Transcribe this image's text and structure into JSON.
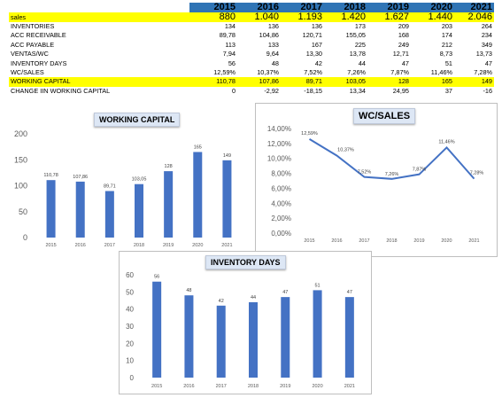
{
  "table": {
    "years": [
      "2015",
      "2016",
      "2017",
      "2018",
      "2019",
      "2020",
      "2021"
    ],
    "rows": [
      {
        "label": "sales",
        "values": [
          "880",
          "1.040",
          "1.193",
          "1.420",
          "1.627",
          "1.440",
          "2.046"
        ],
        "style": "sales"
      },
      {
        "label": "INVENTORIES",
        "values": [
          "134",
          "136",
          "136",
          "173",
          "209",
          "203",
          "264"
        ]
      },
      {
        "label": "ACC RECEIVABLE",
        "values": [
          "89,78",
          "104,86",
          "120,71",
          "155,05",
          "168",
          "174",
          "234"
        ]
      },
      {
        "label": "ACC PAYABLE",
        "values": [
          "113",
          "133",
          "167",
          "225",
          "249",
          "212",
          "349"
        ]
      },
      {
        "label": "VENTAS/WC",
        "values": [
          "7,94",
          "9,64",
          "13,30",
          "13,78",
          "12,71",
          "8,73",
          "13,73"
        ]
      },
      {
        "label": "INVENTORY DAYS",
        "values": [
          "56",
          "48",
          "42",
          "44",
          "47",
          "51",
          "47"
        ]
      },
      {
        "label": "WC/SALES",
        "values": [
          "12,59%",
          "10,37%",
          "7,52%",
          "7,26%",
          "7,87%",
          "11,46%",
          "7,28%"
        ]
      },
      {
        "label": "WORKING CAPITAL",
        "values": [
          "110,78",
          "107,86",
          "89,71",
          "103,05",
          "128",
          "165",
          "149"
        ],
        "style": "wc"
      },
      {
        "label": "CHANGE IIN WORKING CAPITAL",
        "values": [
          "0",
          "-2,92",
          "-18,15",
          "13,34",
          "24,95",
          "37",
          "-16"
        ]
      }
    ]
  },
  "chart_data": [
    {
      "type": "bar",
      "title": "WORKING CAPITAL",
      "categories": [
        "2015",
        "2016",
        "2017",
        "2018",
        "2019",
        "2020",
        "2021"
      ],
      "values": [
        110.78,
        107.86,
        89.71,
        103.05,
        128,
        165,
        149
      ],
      "data_labels": [
        "110,78",
        "107,86",
        "89,71",
        "103,05",
        "128",
        "165",
        "149"
      ],
      "yticks": [
        "0",
        "50",
        "100",
        "150",
        "200"
      ],
      "ylim": [
        0,
        200
      ],
      "color": "#4472c4",
      "grid": false
    },
    {
      "type": "line",
      "title": "WC/SALES",
      "categories": [
        "2015",
        "2016",
        "2017",
        "2018",
        "2019",
        "2020",
        "2021"
      ],
      "values": [
        12.59,
        10.37,
        7.52,
        7.26,
        7.87,
        11.46,
        7.28
      ],
      "data_labels": [
        "12,59%",
        "10,37%",
        "7,52%",
        "7,26%",
        "7,87%",
        "11,46%",
        "7,28%"
      ],
      "yticks": [
        "0,00%",
        "2,00%",
        "4,00%",
        "6,00%",
        "8,00%",
        "10,00%",
        "12,00%",
        "14,00%"
      ],
      "ylim": [
        0,
        14
      ],
      "color": "#4472c4",
      "grid": false
    },
    {
      "type": "bar",
      "title": "INVENTORY DAYS",
      "categories": [
        "2015",
        "2016",
        "2017",
        "2018",
        "2019",
        "2020",
        "2021"
      ],
      "values": [
        56,
        48,
        42,
        44,
        47,
        51,
        47
      ],
      "data_labels": [
        "56",
        "48",
        "42",
        "44",
        "47",
        "51",
        "47"
      ],
      "yticks": [
        "0",
        "10",
        "20",
        "30",
        "40",
        "50",
        "60"
      ],
      "ylim": [
        0,
        60
      ],
      "color": "#4472c4",
      "grid": false
    }
  ]
}
